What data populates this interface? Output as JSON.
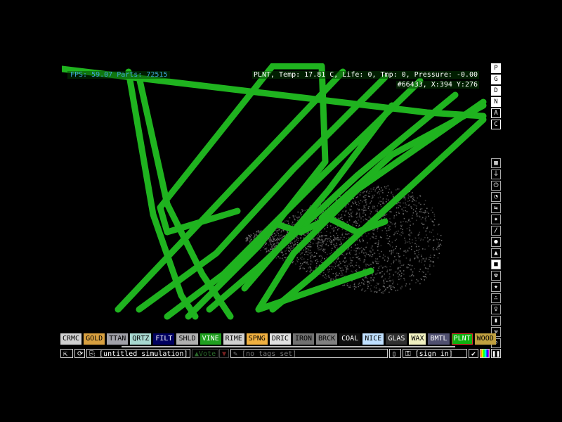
{
  "hud": {
    "fps": "FPS: 59.07 Parts: 72515",
    "particle_info": "PLNT, Temp: 17.81 C, Life: 0, Tmp: 0, Pressure: -0.00",
    "cursor_info": "#66433, X:394 Y:276"
  },
  "render_modes": [
    "P",
    "G",
    "D",
    "N",
    "A",
    "C"
  ],
  "tools": [
    {
      "icon": "wall-icon",
      "glyph": "▦"
    },
    {
      "icon": "electronics-icon",
      "glyph": "⏚"
    },
    {
      "icon": "power-icon",
      "glyph": "⏻"
    },
    {
      "icon": "sensor-icon",
      "glyph": "◔"
    },
    {
      "icon": "force-icon",
      "glyph": "⇆"
    },
    {
      "icon": "explosive-icon",
      "glyph": "✷"
    },
    {
      "icon": "pencil-icon",
      "glyph": "/"
    },
    {
      "icon": "liquid-icon",
      "glyph": "●"
    },
    {
      "icon": "gas-icon",
      "glyph": "▲"
    },
    {
      "icon": "solid-icon",
      "glyph": "■",
      "selected": true
    },
    {
      "icon": "radioactive-icon",
      "glyph": "☢"
    },
    {
      "icon": "special-icon",
      "glyph": "★"
    },
    {
      "icon": "powder-icon",
      "glyph": "∴"
    },
    {
      "icon": "life-icon",
      "glyph": "♀"
    },
    {
      "icon": "bookmark-icon",
      "glyph": "▮"
    },
    {
      "icon": "tools-icon",
      "glyph": "⚒"
    },
    {
      "icon": "search-icon",
      "glyph": "⌕"
    }
  ],
  "elements": [
    {
      "name": "CRMC",
      "bg": "#d0d0d0",
      "fg": "#000"
    },
    {
      "name": "GOLD",
      "bg": "#d8a040",
      "fg": "#000"
    },
    {
      "name": "TTAN",
      "bg": "#a0a0a8",
      "fg": "#000"
    },
    {
      "name": "QRTZ",
      "bg": "#a8d8d0",
      "fg": "#000"
    },
    {
      "name": "FILT",
      "bg": "#000060",
      "fg": "#fff"
    },
    {
      "name": "SHLD",
      "bg": "#b0b0b0",
      "fg": "#000"
    },
    {
      "name": "VINE",
      "bg": "#20a020",
      "fg": "#fff"
    },
    {
      "name": "RIME",
      "bg": "#d0d0d0",
      "fg": "#000"
    },
    {
      "name": "SPNG",
      "bg": "#f0b040",
      "fg": "#000"
    },
    {
      "name": "DRIC",
      "bg": "#e0e0e0",
      "fg": "#000"
    },
    {
      "name": "IRON",
      "bg": "#707070",
      "fg": "#000"
    },
    {
      "name": "BRCK",
      "bg": "#808080",
      "fg": "#000"
    },
    {
      "name": "COAL",
      "bg": "#101010",
      "fg": "#fff"
    },
    {
      "name": "NICE",
      "bg": "#c0e0ff",
      "fg": "#000"
    },
    {
      "name": "GLAS",
      "bg": "#303030",
      "fg": "#fff"
    },
    {
      "name": "WAX",
      "bg": "#f0f0c0",
      "fg": "#000"
    },
    {
      "name": "BMTL",
      "bg": "#505070",
      "fg": "#fff"
    },
    {
      "name": "PLNT",
      "bg": "#10b010",
      "fg": "#fff",
      "selected": true
    },
    {
      "name": "WOOD",
      "bg": "#c0a040",
      "fg": "#000"
    }
  ],
  "bottom": {
    "title": "[untitled simulation]",
    "vote": "Vote",
    "tags": "[no tags set]",
    "sign_in": "[sign in]"
  },
  "colors": {
    "plant": "#1fb31f",
    "dust": "#6a6a6a"
  }
}
